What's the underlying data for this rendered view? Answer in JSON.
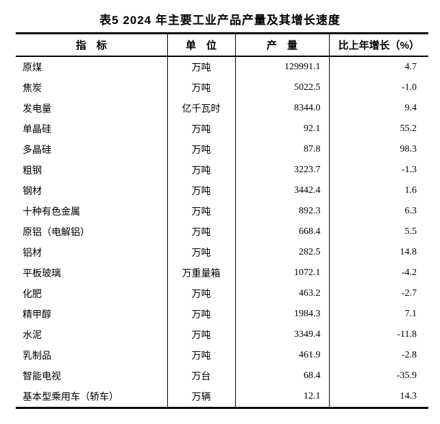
{
  "title": "表5 2024 年主要工业产品产量及其增长速度",
  "table": {
    "headers": [
      "指　标",
      "单　位",
      "产　量",
      "比上年增长（%）"
    ],
    "rows": [
      {
        "indicator": "原煤",
        "unit": "万吨",
        "output": "129991.1",
        "growth": "4.7"
      },
      {
        "indicator": "焦炭",
        "unit": "万吨",
        "output": "5022.5",
        "growth": "-1.0"
      },
      {
        "indicator": "发电量",
        "unit": "亿千瓦时",
        "output": "8344.0",
        "growth": "9.4"
      },
      {
        "indicator": "单晶硅",
        "unit": "万吨",
        "output": "92.1",
        "growth": "55.2"
      },
      {
        "indicator": "多晶硅",
        "unit": "万吨",
        "output": "87.8",
        "growth": "98.3"
      },
      {
        "indicator": "粗钢",
        "unit": "万吨",
        "output": "3223.7",
        "growth": "-1.3"
      },
      {
        "indicator": "钢材",
        "unit": "万吨",
        "output": "3442.4",
        "growth": "1.6"
      },
      {
        "indicator": "十种有色金属",
        "unit": "万吨",
        "output": "892.3",
        "growth": "6.3"
      },
      {
        "indicator": "原铝（电解铝）",
        "unit": "万吨",
        "output": "668.4",
        "growth": "5.5"
      },
      {
        "indicator": "铝材",
        "unit": "万吨",
        "output": "282.5",
        "growth": "14.8"
      },
      {
        "indicator": "平板玻璃",
        "unit": "万重量箱",
        "output": "1072.1",
        "growth": "-4.2"
      },
      {
        "indicator": "化肥",
        "unit": "万吨",
        "output": "463.2",
        "growth": "-2.7"
      },
      {
        "indicator": "精甲醇",
        "unit": "万吨",
        "output": "1984.3",
        "growth": "7.1"
      },
      {
        "indicator": "水泥",
        "unit": "万吨",
        "output": "3349.4",
        "growth": "-11.8"
      },
      {
        "indicator": "乳制品",
        "unit": "万吨",
        "output": "461.9",
        "growth": "-2.8"
      },
      {
        "indicator": "智能电视",
        "unit": "万台",
        "output": "68.4",
        "growth": "-35.9"
      },
      {
        "indicator": "基本型乘用车（轿车）",
        "unit": "万辆",
        "output": "12.1",
        "growth": "14.3"
      }
    ]
  }
}
